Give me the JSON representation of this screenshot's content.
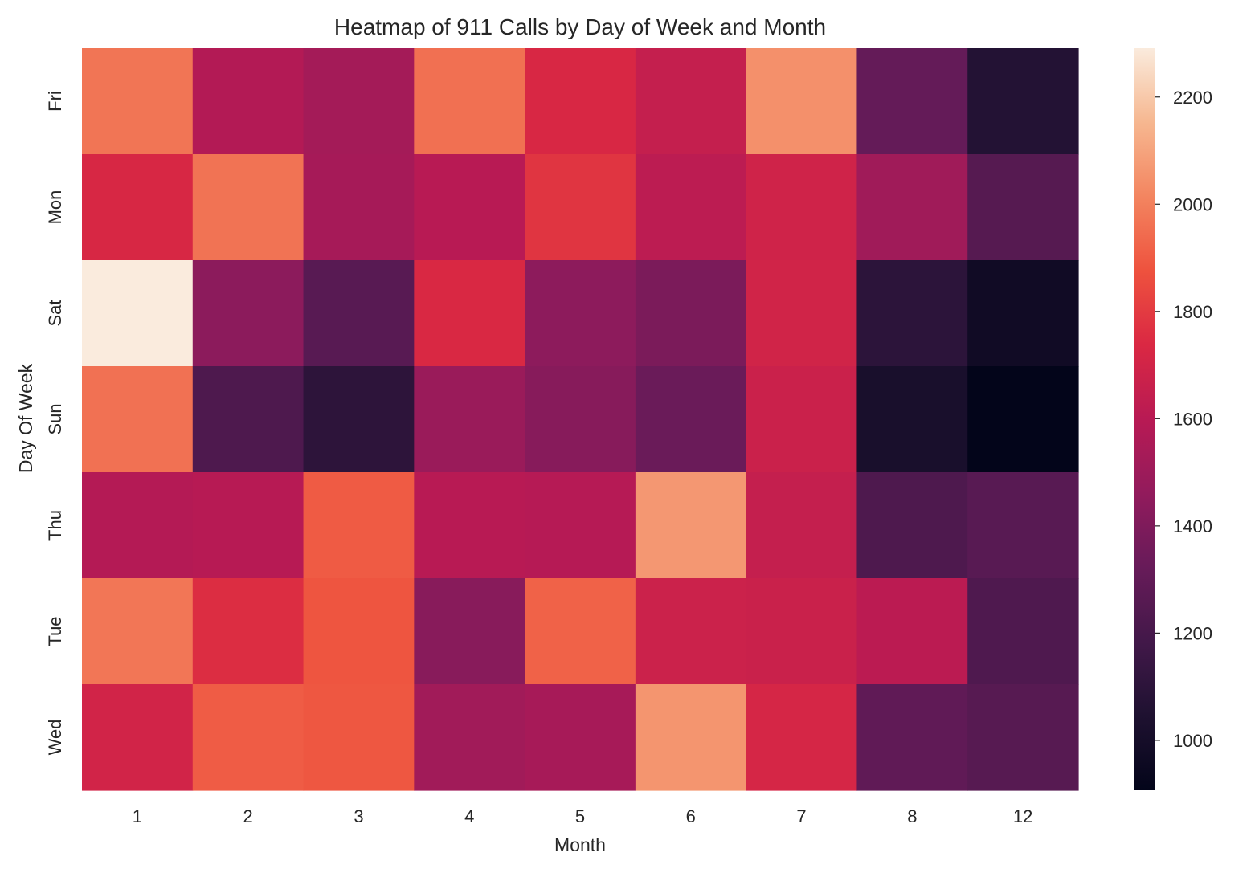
{
  "chart_data": {
    "type": "heatmap",
    "title": "Heatmap of 911 Calls by Day of Week and Month",
    "xlabel": "Month",
    "ylabel": "Day Of Week",
    "x_categories": [
      "1",
      "2",
      "3",
      "4",
      "5",
      "6",
      "7",
      "8",
      "12"
    ],
    "y_categories": [
      "Fri",
      "Mon",
      "Sat",
      "Sun",
      "Thu",
      "Tue",
      "Wed"
    ],
    "values": [
      [
        1970,
        1581,
        1525,
        1958,
        1730,
        1649,
        2045,
        1310,
        1065
      ],
      [
        1727,
        1964,
        1535,
        1598,
        1779,
        1617,
        1692,
        1511,
        1257
      ],
      [
        2291,
        1441,
        1266,
        1734,
        1444,
        1388,
        1695,
        1099,
        978
      ],
      [
        1960,
        1229,
        1102,
        1488,
        1424,
        1333,
        1672,
        1021,
        907
      ],
      [
        1584,
        1596,
        1900,
        1601,
        1590,
        2065,
        1646,
        1230,
        1266
      ],
      [
        1973,
        1753,
        1884,
        1430,
        1918,
        1676,
        1670,
        1612,
        1234
      ],
      [
        1700,
        1903,
        1889,
        1517,
        1538,
        2058,
        1717,
        1295,
        1262
      ]
    ],
    "colorbar": {
      "range": [
        907,
        2291
      ],
      "ticks": [
        "1000",
        "1200",
        "1400",
        "1600",
        "1800",
        "2000",
        "2200"
      ],
      "colormap": "rocket"
    }
  }
}
